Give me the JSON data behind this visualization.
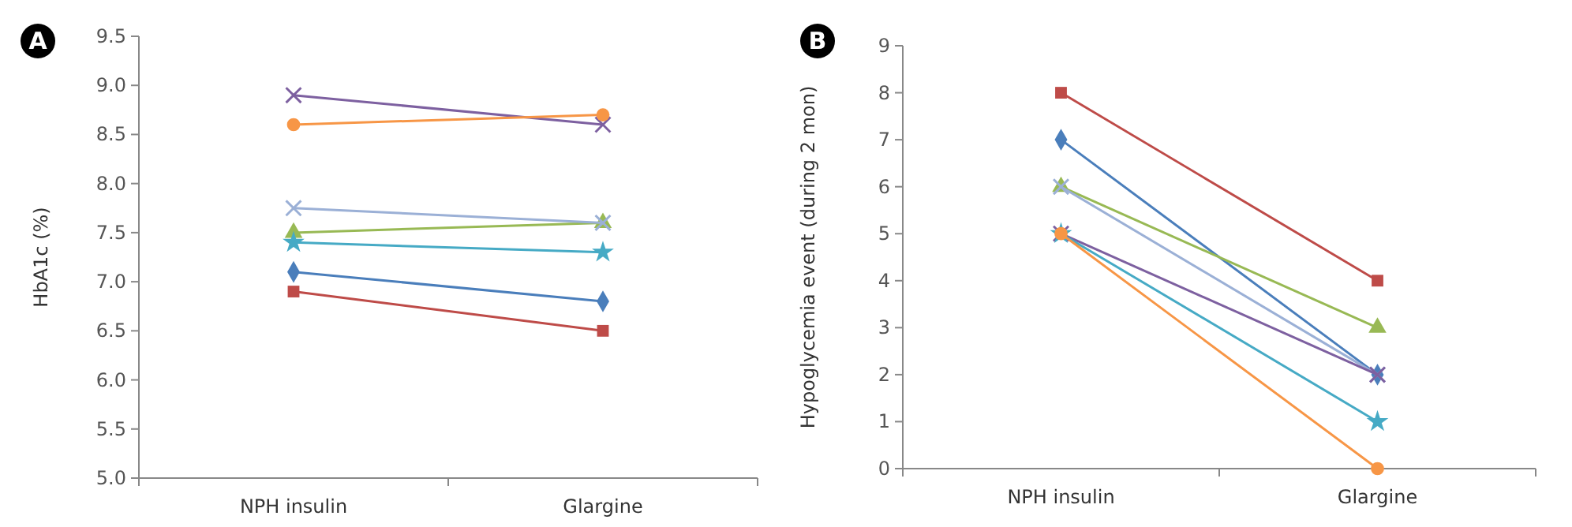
{
  "chart_data": [
    {
      "type": "line",
      "annotations": [
        "A"
      ],
      "ylabel": "HbA1c (%)",
      "categories": [
        "NPH insulin",
        "Glargine"
      ],
      "ylim": [
        5,
        9.5
      ],
      "yticks": [
        {
          "value": 5,
          "label": "5.0"
        },
        {
          "value": 5.5,
          "label": "5.5"
        },
        {
          "value": 6,
          "label": "6.0"
        },
        {
          "value": 6.5,
          "label": "6.5"
        },
        {
          "value": 7,
          "label": "7.0"
        },
        {
          "value": 7.5,
          "label": "7.5"
        },
        {
          "value": 8,
          "label": "8.0"
        },
        {
          "value": 8.5,
          "label": "8.5"
        },
        {
          "value": 9,
          "label": "9.0"
        },
        {
          "value": 9.5,
          "label": "9.5"
        }
      ],
      "grid": false,
      "series": [
        {
          "color": "#4a7ebb",
          "marker": "diamond",
          "values": [
            7.1,
            6.8
          ]
        },
        {
          "color": "#be4b48",
          "marker": "square",
          "values": [
            6.9,
            6.5
          ]
        },
        {
          "color": "#98b954",
          "marker": "triangle",
          "values": [
            7.5,
            7.6
          ]
        },
        {
          "color": "#7d60a0",
          "marker": "cross",
          "values": [
            8.9,
            8.6
          ]
        },
        {
          "color": "#46aac5",
          "marker": "star",
          "values": [
            7.4,
            7.3
          ]
        },
        {
          "color": "#f79646",
          "marker": "circle",
          "values": [
            8.6,
            8.7
          ]
        },
        {
          "color": "#9bb0d6",
          "marker": "cross",
          "values": [
            7.75,
            7.6
          ]
        }
      ]
    },
    {
      "type": "line",
      "annotations": [
        "B"
      ],
      "ylabel": "Hypoglycemia event (during 2 mon)",
      "categories": [
        "NPH insulin",
        "Glargine"
      ],
      "ylim": [
        0,
        9
      ],
      "yticks": [
        0,
        1,
        2,
        3,
        4,
        5,
        6,
        7,
        8,
        9
      ],
      "grid": false,
      "series": [
        {
          "color": "#be4b48",
          "marker": "square",
          "values": [
            8,
            4
          ]
        },
        {
          "color": "#4a7ebb",
          "marker": "diamond",
          "values": [
            7,
            2
          ]
        },
        {
          "color": "#98b954",
          "marker": "triangle",
          "values": [
            6,
            3
          ]
        },
        {
          "color": "#9bb0d6",
          "marker": "cross",
          "values": [
            6,
            2
          ]
        },
        {
          "color": "#7d60a0",
          "marker": "cross",
          "values": [
            5,
            2
          ]
        },
        {
          "color": "#46aac5",
          "marker": "star",
          "values": [
            5,
            1
          ]
        },
        {
          "color": "#f79646",
          "marker": "circle",
          "values": [
            5,
            0
          ]
        }
      ]
    }
  ]
}
